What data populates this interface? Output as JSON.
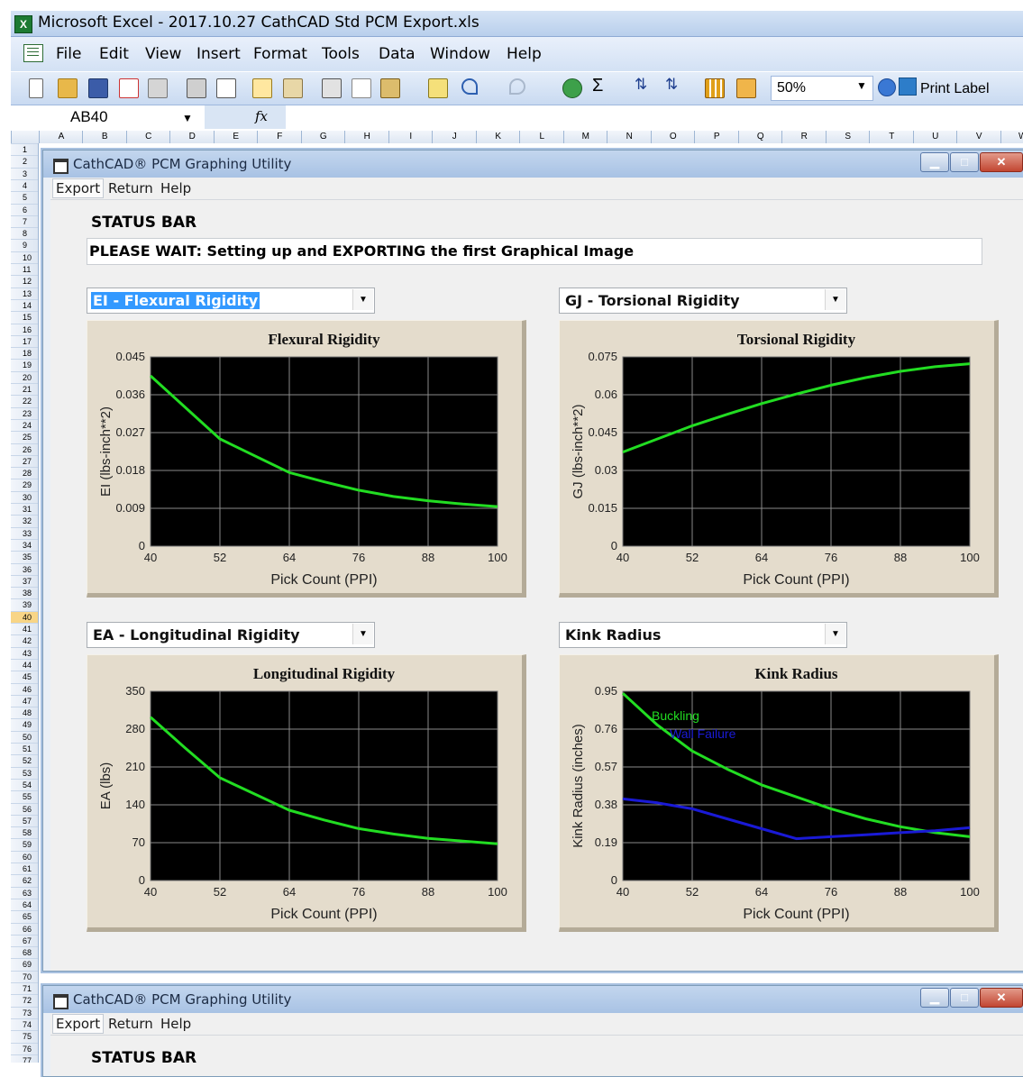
{
  "app": {
    "window_title": "Microsoft Excel - 2017.10.27 CathCAD Std PCM Export.xls",
    "logo_letter": "X",
    "menu": [
      "File",
      "Edit",
      "View",
      "Insert",
      "Format",
      "Tools",
      "Data",
      "Window",
      "Help"
    ],
    "zoom": "50%",
    "print_label": "Print Label",
    "name_box": "AB40",
    "fx": "fx",
    "columns": [
      "A",
      "B",
      "C",
      "D",
      "E",
      "F",
      "G",
      "H",
      "I",
      "J",
      "K",
      "L",
      "M",
      "N",
      "O",
      "P",
      "Q",
      "R",
      "S",
      "T",
      "U",
      "V",
      "W"
    ],
    "selected_row": 40,
    "icons": [
      "excel-logo-icon",
      "new-icon",
      "open-icon",
      "save-icon",
      "permission-icon",
      "email-icon",
      "print-icon",
      "print-preview-icon",
      "spelling-icon",
      "research-icon",
      "cut-icon",
      "copy-icon",
      "paste-icon",
      "format-painter-icon",
      "undo-icon",
      "redo-icon",
      "hyperlink-icon",
      "autosum-icon",
      "sort-ascending-icon",
      "sort-descending-icon",
      "chart-wizard-icon",
      "drawing-icon",
      "help-icon",
      "print-label-icon"
    ]
  },
  "userform": {
    "title": "CathCAD® PCM Graphing Utility",
    "menu": [
      "Export",
      "Return",
      "Help"
    ],
    "status_label": "STATUS BAR",
    "status_text": "PLEASE WAIT: Setting up and EXPORTING the first Graphical Image",
    "combos": [
      "EI - Flexural Rigidity",
      "GJ - Torsional Rigidity",
      "EA - Longitudinal Rigidity",
      "Kink Radius"
    ]
  },
  "chart_data": [
    {
      "type": "line",
      "title": "Flexural Rigidity",
      "xlabel": "Pick Count (PPI)",
      "ylabel": "EI (lbs-inch**2)",
      "xlim": [
        40,
        100
      ],
      "ylim": [
        0,
        0.045
      ],
      "xticks": [
        "40",
        "52",
        "64",
        "76",
        "88",
        "100"
      ],
      "yticks": [
        "0",
        "0.009",
        "0.018",
        "0.027",
        "0.036",
        "0.045"
      ],
      "grid": true,
      "series": [
        {
          "color": "#22dd22",
          "x": [
            40,
            46,
            52,
            58,
            64,
            70,
            76,
            82,
            88,
            94,
            100
          ],
          "y": [
            0.0405,
            0.033,
            0.0255,
            0.0215,
            0.0175,
            0.0153,
            0.0133,
            0.0118,
            0.0108,
            0.01,
            0.0094
          ]
        }
      ]
    },
    {
      "type": "line",
      "title": "Torsional Rigidity",
      "xlabel": "Pick Count (PPI)",
      "ylabel": "GJ (lbs-inch**2)",
      "xlim": [
        40,
        100
      ],
      "ylim": [
        0,
        0.075
      ],
      "xticks": [
        "40",
        "52",
        "64",
        "76",
        "88",
        "100"
      ],
      "yticks": [
        "0",
        "0.015",
        "0.03",
        "0.045",
        "0.06",
        "0.075"
      ],
      "grid": true,
      "series": [
        {
          "color": "#22dd22",
          "x": [
            40,
            46,
            52,
            58,
            64,
            70,
            76,
            82,
            88,
            94,
            100
          ],
          "y": [
            0.0373,
            0.0425,
            0.0477,
            0.0522,
            0.0565,
            0.0603,
            0.0638,
            0.0668,
            0.0693,
            0.0711,
            0.0723
          ]
        }
      ]
    },
    {
      "type": "line",
      "title": "Longitudinal Rigidity",
      "xlabel": "Pick Count (PPI)",
      "ylabel": "EA (lbs)",
      "xlim": [
        40,
        100
      ],
      "ylim": [
        0,
        350
      ],
      "xticks": [
        "40",
        "52",
        "64",
        "76",
        "88",
        "100"
      ],
      "yticks": [
        "0",
        "70",
        "140",
        "210",
        "280",
        "350"
      ],
      "grid": true,
      "series": [
        {
          "color": "#22dd22",
          "x": [
            40,
            46,
            52,
            58,
            64,
            70,
            76,
            82,
            88,
            94,
            100
          ],
          "y": [
            302,
            245,
            190,
            160,
            130,
            112,
            96,
            86,
            78,
            73,
            68
          ]
        }
      ]
    },
    {
      "type": "line",
      "title": "Kink Radius",
      "xlabel": "Pick Count (PPI)",
      "ylabel": "Kink Radius (inches)",
      "xlim": [
        40,
        100
      ],
      "ylim": [
        0,
        0.95
      ],
      "xticks": [
        "40",
        "52",
        "64",
        "76",
        "88",
        "100"
      ],
      "yticks": [
        "0",
        "0.19",
        "0.38",
        "0.57",
        "0.76",
        "0.95"
      ],
      "grid": true,
      "series": [
        {
          "name": "Buckling",
          "color": "#22dd22",
          "x": [
            40,
            46,
            52,
            58,
            64,
            70,
            76,
            82,
            88,
            94,
            100
          ],
          "y": [
            0.94,
            0.78,
            0.65,
            0.56,
            0.48,
            0.42,
            0.36,
            0.31,
            0.27,
            0.24,
            0.22
          ]
        },
        {
          "name": "Wall Failure",
          "color": "#1a1ad6",
          "x": [
            40,
            46,
            52,
            58,
            64,
            70,
            76,
            82,
            88,
            94,
            100
          ],
          "y": [
            0.41,
            0.39,
            0.36,
            0.31,
            0.26,
            0.21,
            0.22,
            0.23,
            0.24,
            0.25,
            0.265
          ]
        }
      ],
      "legend": "top-left"
    }
  ],
  "userform2": {
    "title": "CathCAD® PCM Graphing Utility",
    "menu": [
      "Export",
      "Return",
      "Help"
    ],
    "status_label": "STATUS BAR"
  }
}
